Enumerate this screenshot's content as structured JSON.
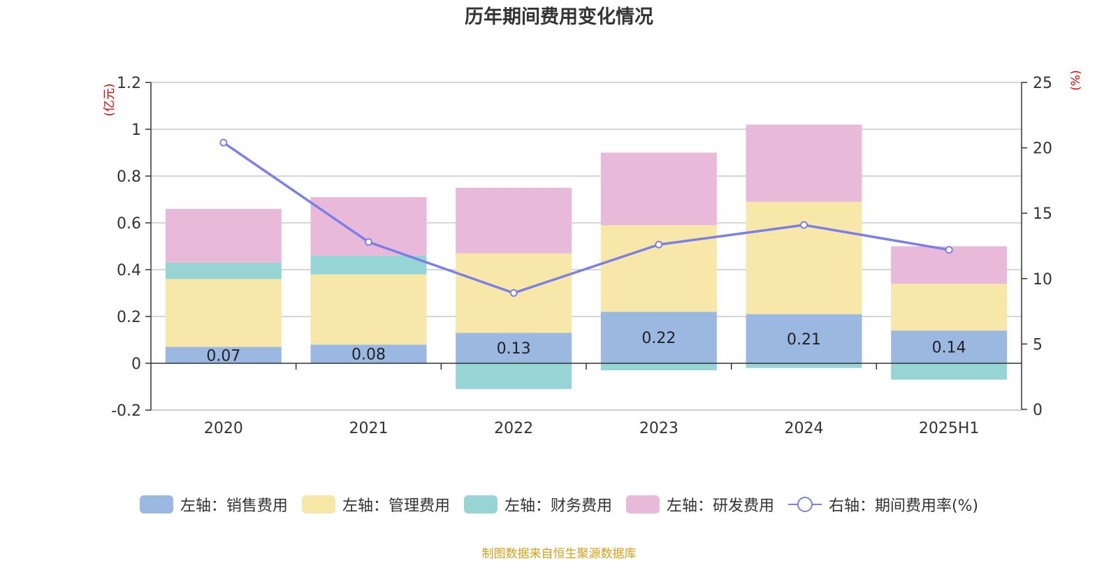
{
  "chart_data": {
    "type": "bar+line",
    "title": "历年期间费用变化情况",
    "categories": [
      "2020",
      "2021",
      "2022",
      "2023",
      "2024",
      "2025H1"
    ],
    "left_axis": {
      "label": "(亿元)",
      "min": -0.2,
      "max": 1.2,
      "ticks": [
        -0.2,
        0,
        0.2,
        0.4,
        0.6,
        0.8,
        1,
        1.2
      ],
      "tick_labels": [
        "-0.2",
        "0",
        "0.2",
        "0.4",
        "0.6",
        "0.8",
        "1",
        "1.2"
      ]
    },
    "right_axis": {
      "label": "(%)",
      "min": 0,
      "max": 25,
      "ticks": [
        0,
        5,
        10,
        15,
        20,
        25
      ],
      "tick_labels": [
        "0",
        "5",
        "10",
        "15",
        "20",
        "25"
      ]
    },
    "series": [
      {
        "name": "左轴：销售费用",
        "type": "bar",
        "axis": "left",
        "color": "#9bb8e1",
        "values": [
          0.07,
          0.08,
          0.13,
          0.22,
          0.21,
          0.14
        ],
        "labels": [
          "0.07",
          "0.08",
          "0.13",
          "0.22",
          "0.21",
          "0.14"
        ]
      },
      {
        "name": "左轴：管理费用",
        "type": "bar",
        "axis": "left",
        "color": "#f7e7a8",
        "values": [
          0.29,
          0.3,
          0.34,
          0.37,
          0.48,
          0.2
        ]
      },
      {
        "name": "左轴：财务费用",
        "type": "bar",
        "axis": "left",
        "color": "#97d4d4",
        "values": [
          0.07,
          0.08,
          -0.11,
          -0.03,
          -0.02,
          -0.07
        ]
      },
      {
        "name": "左轴：研发费用",
        "type": "bar",
        "axis": "left",
        "color": "#e8b9d9",
        "values": [
          0.23,
          0.25,
          0.28,
          0.31,
          0.33,
          0.16
        ]
      },
      {
        "name": "右轴：期间费用率(%)",
        "type": "line",
        "axis": "right",
        "color": "#7b80e8",
        "values": [
          20.4,
          12.8,
          8.9,
          12.6,
          14.1,
          12.2
        ]
      }
    ],
    "source": "制图数据来自恒生聚源数据库"
  }
}
